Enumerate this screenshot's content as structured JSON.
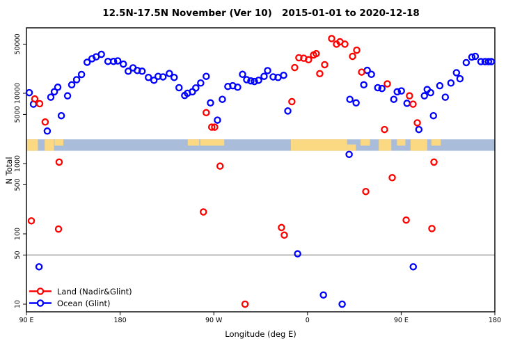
{
  "chart_data": {
    "type": "scatter",
    "title": "12.5N-17.5N November (Ver 10)   2015-01-01 to 2020-12-18",
    "xlabel": "Longitude (deg E)",
    "ylabel": "N Total",
    "y_scale": "log",
    "ylim": [
      8,
      85000
    ],
    "xlim_axis_degrees": [
      90,
      540
    ],
    "x_ticks": [
      {
        "pos": 90,
        "label": "90 E"
      },
      {
        "pos": 180,
        "label": "180"
      },
      {
        "pos": 270,
        "label": "90 W"
      },
      {
        "pos": 360,
        "label": "0"
      },
      {
        "pos": 450,
        "label": "90 E"
      },
      {
        "pos": 540,
        "label": "180"
      }
    ],
    "y_ticks": [
      {
        "value": 50000,
        "label": "50000"
      },
      {
        "value": 10000,
        "label": "10000"
      },
      {
        "value": 5000,
        "label": "5000"
      },
      {
        "value": 1000,
        "label": "1000"
      },
      {
        "value": 500,
        "label": "500"
      },
      {
        "value": 100,
        "label": "100"
      },
      {
        "value": 50,
        "label": "50"
      },
      {
        "value": 10,
        "label": "10"
      }
    ],
    "hline_value": 50,
    "hline_color": "#8c8c8c",
    "map_strip": {
      "value_range": [
        1520,
        2210
      ],
      "ocean_color": "#a9bddb",
      "land_color": "#fbd882",
      "land_patches": [
        {
          "from": 90,
          "to": 101,
          "extent": "full"
        },
        {
          "from": 107.5,
          "to": 116.5,
          "extent": "full"
        },
        {
          "from": 117,
          "to": 125.5,
          "extent": "top"
        },
        {
          "from": 245,
          "to": 256,
          "extent": "top"
        },
        {
          "from": 257,
          "to": 280,
          "extent": "top"
        },
        {
          "from": 344,
          "to": 398,
          "extent": "full"
        },
        {
          "from": 398,
          "to": 406.5,
          "extent": "bottom"
        },
        {
          "from": 411,
          "to": 420,
          "extent": "top"
        },
        {
          "from": 428.5,
          "to": 440.5,
          "extent": "full"
        },
        {
          "from": 446,
          "to": 454,
          "extent": "top"
        },
        {
          "from": 459,
          "to": 475,
          "extent": "full"
        },
        {
          "from": 479,
          "to": 488,
          "extent": "top"
        }
      ]
    },
    "series": [
      {
        "id": "land",
        "name": "Land (Nadir&Glint)",
        "color": "#ff0000",
        "points": [
          [
            94.7,
            153
          ],
          [
            98,
            8300
          ],
          [
            102.7,
            7100
          ],
          [
            108,
            3900
          ],
          [
            120.8,
            117
          ],
          [
            121.4,
            1050
          ],
          [
            260,
            205
          ],
          [
            262.7,
            5300
          ],
          [
            268,
            3300
          ],
          [
            270.8,
            3300
          ],
          [
            276,
            920
          ],
          [
            300,
            10
          ],
          [
            335,
            123
          ],
          [
            337.7,
            96
          ],
          [
            345,
            7600
          ],
          [
            347.7,
            23200
          ],
          [
            351.7,
            32000
          ],
          [
            356.4,
            31500
          ],
          [
            361,
            30000
          ],
          [
            365.8,
            35000
          ],
          [
            368.4,
            36600
          ],
          [
            371.8,
            19000
          ],
          [
            376.5,
            25500
          ],
          [
            383.2,
            60000
          ],
          [
            387.9,
            50000
          ],
          [
            391.2,
            54000
          ],
          [
            395.9,
            50000
          ],
          [
            403.3,
            33500
          ],
          [
            407.3,
            41000
          ],
          [
            412,
            20000
          ],
          [
            416,
            400
          ],
          [
            434,
            3050
          ],
          [
            436.7,
            13600
          ],
          [
            441.4,
            630
          ],
          [
            454.8,
            157
          ],
          [
            458,
            9200
          ],
          [
            461.4,
            7000
          ],
          [
            465.5,
            3800
          ],
          [
            479.5,
            119
          ],
          [
            481.5,
            1050
          ]
        ]
      },
      {
        "id": "ocean",
        "name": "Ocean (Glint)",
        "color": "#0000ff",
        "points": [
          [
            92.7,
            10200
          ],
          [
            96.7,
            7000
          ],
          [
            102.1,
            34
          ],
          [
            110,
            2900
          ],
          [
            113.4,
            8800
          ],
          [
            116.8,
            10500
          ],
          [
            120.1,
            12200
          ],
          [
            123.5,
            4800
          ],
          [
            129.5,
            9200
          ],
          [
            133.5,
            13200
          ],
          [
            138.2,
            15600
          ],
          [
            142.9,
            18500
          ],
          [
            148.3,
            27600
          ],
          [
            153,
            31000
          ],
          [
            157,
            33000
          ],
          [
            162,
            35800
          ],
          [
            168.3,
            28400
          ],
          [
            173.7,
            28400
          ],
          [
            177.7,
            28900
          ],
          [
            183.1,
            26000
          ],
          [
            187.8,
            20600
          ],
          [
            192.4,
            23000
          ],
          [
            196.5,
            21100
          ],
          [
            201.1,
            20600
          ],
          [
            207.2,
            16800
          ],
          [
            212.5,
            15300
          ],
          [
            216.5,
            17400
          ],
          [
            221.2,
            17100
          ],
          [
            227.3,
            19100
          ],
          [
            231.9,
            16800
          ],
          [
            236.6,
            12000
          ],
          [
            242,
            9300
          ],
          [
            244.7,
            10000
          ],
          [
            249.4,
            10500
          ],
          [
            252.7,
            11900
          ],
          [
            257.4,
            14000
          ],
          [
            262.7,
            17400
          ],
          [
            266.8,
            7300
          ],
          [
            273.5,
            4150
          ],
          [
            278.2,
            8200
          ],
          [
            283.5,
            12500
          ],
          [
            288.2,
            12800
          ],
          [
            292.9,
            12200
          ],
          [
            297.6,
            18600
          ],
          [
            301.6,
            15600
          ],
          [
            305.6,
            15000
          ],
          [
            309,
            14700
          ],
          [
            313,
            15300
          ],
          [
            318.3,
            17400
          ],
          [
            321.7,
            21000
          ],
          [
            327,
            17100
          ],
          [
            331.7,
            16800
          ],
          [
            337.1,
            18000
          ],
          [
            341.1,
            5600
          ],
          [
            350.5,
            52
          ],
          [
            375.3,
            13.5
          ],
          [
            393.3,
            10
          ],
          [
            400,
            1350
          ],
          [
            400.7,
            8200
          ],
          [
            406.7,
            7300
          ],
          [
            414.1,
            13200
          ],
          [
            417.4,
            21200
          ],
          [
            421.4,
            18600
          ],
          [
            427.5,
            12000
          ],
          [
            431.5,
            11700
          ],
          [
            442.9,
            8200
          ],
          [
            446.2,
            10500
          ],
          [
            450.2,
            10800
          ],
          [
            455.6,
            7200
          ],
          [
            461.6,
            34
          ],
          [
            467,
            3050
          ],
          [
            472.3,
            9200
          ],
          [
            475,
            11300
          ],
          [
            478.3,
            10200
          ],
          [
            481,
            4800
          ],
          [
            487.1,
            12800
          ],
          [
            492.4,
            8800
          ],
          [
            497.8,
            14000
          ],
          [
            503.1,
            19600
          ],
          [
            506.5,
            16100
          ],
          [
            512.5,
            27300
          ],
          [
            517.9,
            32700
          ],
          [
            521.2,
            33500
          ],
          [
            526.6,
            28200
          ],
          [
            530.6,
            28200
          ],
          [
            533.9,
            28200
          ],
          [
            536.6,
            28200
          ]
        ]
      }
    ]
  }
}
